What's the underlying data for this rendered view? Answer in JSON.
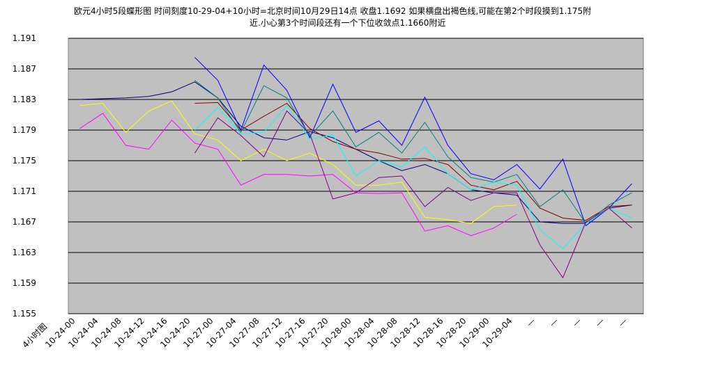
{
  "chart_data": {
    "type": "line",
    "title_lines": [
      "欧元4小时5段蝶形图  时间刻度10-29-04+10小时=北京时间10月29日14点  收盘1.1692   如果横盘出褐色线,可能在第2个时段摸到1.175附",
      "近.小心第3个时间段还有一个下位收敛点1.1660附近"
    ],
    "xlabel": "4小时图",
    "categories": [
      "10-24-00",
      "10-24-04",
      "10-24-08",
      "10-24-12",
      "10-24-16",
      "10-24-20",
      "10-27-00",
      "10-27-04",
      "10-27-08",
      "10-27-12",
      "10-27-16",
      "10-27-20",
      "10-28-00",
      "10-28-04",
      "10-28-08",
      "10-28-12",
      "10-28-16",
      "10-28-20",
      "10-29-00",
      "10-29-04",
      "—",
      "—",
      "—",
      "—",
      "—"
    ],
    "ylim": [
      1.155,
      1.191
    ],
    "yticks": [
      1.155,
      1.159,
      1.163,
      1.167,
      1.171,
      1.175,
      1.179,
      1.183,
      1.187,
      1.191
    ],
    "grid": true,
    "series": [
      {
        "color": "#000080",
        "values": [
          1.183,
          1.1831,
          1.1832,
          1.1834,
          1.184,
          1.1853,
          1.1832,
          1.1795,
          1.178,
          1.1777,
          1.1788,
          1.178,
          1.1765,
          1.175,
          1.1737,
          1.1745,
          1.1733,
          1.1712,
          1.1708,
          1.1705,
          1.167,
          1.1668,
          1.1668,
          1.1688,
          1.1692
        ]
      },
      {
        "color": "#ffff00",
        "values": [
          1.1822,
          1.1825,
          1.1787,
          1.1815,
          1.1828,
          1.1785,
          1.1777,
          1.175,
          1.1765,
          1.175,
          1.176,
          1.1745,
          1.1718,
          1.1718,
          1.1722,
          1.1676,
          1.1673,
          1.1668,
          1.169,
          1.1692,
          null,
          null,
          null,
          null,
          null
        ]
      },
      {
        "color": "#ff00ff",
        "values": [
          1.1792,
          1.1812,
          1.177,
          1.1765,
          1.1803,
          1.1773,
          1.1765,
          1.1718,
          1.1732,
          1.1732,
          1.173,
          1.1732,
          1.1708,
          1.1707,
          1.1708,
          1.1658,
          1.1665,
          1.1652,
          1.1662,
          1.168,
          null,
          null,
          null,
          null,
          null
        ]
      },
      {
        "color": "#0000ff",
        "values": [
          null,
          null,
          null,
          null,
          null,
          1.1885,
          1.1855,
          1.179,
          1.1875,
          1.1842,
          1.178,
          1.185,
          1.1787,
          1.1802,
          1.177,
          1.1833,
          1.177,
          1.1733,
          1.1725,
          1.1745,
          1.1713,
          1.1752,
          1.1665,
          1.1688,
          1.172
        ]
      },
      {
        "color": "#800000",
        "values": [
          null,
          null,
          null,
          null,
          null,
          1.1825,
          1.1826,
          1.179,
          1.1808,
          1.1825,
          1.1792,
          1.1775,
          1.1765,
          1.176,
          1.1752,
          1.1753,
          1.1745,
          1.1718,
          1.1712,
          1.1723,
          1.1688,
          1.1675,
          1.1672,
          1.169,
          1.1692
        ]
      },
      {
        "color": "#008080",
        "values": [
          null,
          null,
          null,
          null,
          null,
          1.1855,
          1.1832,
          1.1787,
          1.1848,
          1.1832,
          1.1782,
          1.1815,
          1.1768,
          1.1787,
          1.176,
          1.18,
          1.1755,
          1.1728,
          1.1722,
          1.1732,
          1.169,
          1.1712,
          1.1668,
          1.1692,
          1.1708
        ]
      },
      {
        "color": "#00ffff",
        "values": [
          null,
          null,
          null,
          null,
          null,
          1.179,
          1.182,
          1.1785,
          1.1787,
          1.1822,
          1.1778,
          1.1784,
          1.173,
          1.175,
          1.1742,
          1.1768,
          1.1733,
          1.1712,
          1.1722,
          1.1718,
          1.166,
          1.1635,
          1.1668,
          1.1688,
          1.1675
        ]
      },
      {
        "color": "#800080",
        "values": [
          null,
          null,
          null,
          null,
          null,
          1.176,
          1.1806,
          1.1783,
          1.1755,
          1.1815,
          1.1785,
          1.17,
          1.1708,
          1.1728,
          1.173,
          1.169,
          1.1715,
          1.1698,
          1.1708,
          1.1708,
          1.164,
          1.1597,
          1.167,
          1.1688,
          1.1662
        ]
      }
    ]
  }
}
